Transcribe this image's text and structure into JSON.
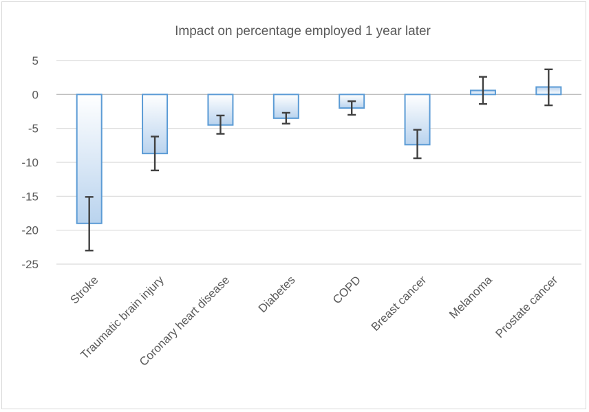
{
  "chart_data": {
    "type": "bar",
    "title": "Impact on percentage employed 1 year later",
    "xlabel": "",
    "ylabel": "",
    "ylim": [
      -25,
      5
    ],
    "yticks": [
      5,
      0,
      -5,
      -10,
      -15,
      -20,
      -25
    ],
    "grid": true,
    "legend": "none",
    "bar_color": "#5b9bd5",
    "error_bar_color": "#404040",
    "categories": [
      "Stroke",
      "Traumatic brain injury",
      "Coronary heart disease",
      "Diabetes",
      "COPD",
      "Breast cancer",
      "Melanoma",
      "Prostate cancer"
    ],
    "values": [
      -19,
      -8.7,
      -4.5,
      -3.5,
      -2,
      -7.4,
      0.6,
      1.1
    ],
    "error_low": [
      -23,
      -11.2,
      -5.8,
      -4.3,
      -3,
      -9.4,
      -1.4,
      -1.6
    ],
    "error_high": [
      -15.1,
      -6.2,
      -3.1,
      -2.7,
      -1,
      -5.2,
      2.6,
      3.7
    ]
  }
}
